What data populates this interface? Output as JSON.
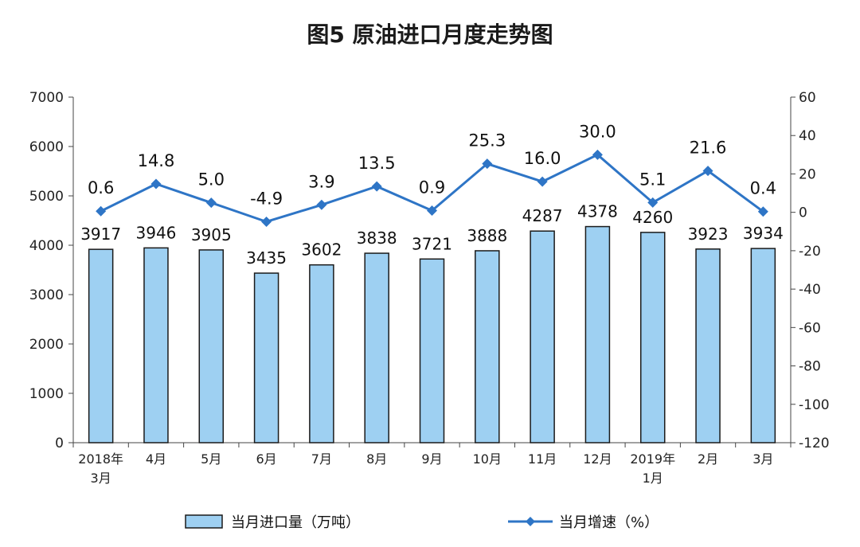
{
  "chart_data": {
    "type": "bar",
    "title": "图5 原油进口月度走势图",
    "categories": [
      [
        "2018年",
        "3月"
      ],
      [
        "4月"
      ],
      [
        "5月"
      ],
      [
        "6月"
      ],
      [
        "7月"
      ],
      [
        "8月"
      ],
      [
        "9月"
      ],
      [
        "10月"
      ],
      [
        "11月"
      ],
      [
        "12月"
      ],
      [
        "2019年",
        "1月"
      ],
      [
        "2月"
      ],
      [
        "3月"
      ]
    ],
    "series": [
      {
        "name": "当月进口量（万吨）",
        "type": "bar",
        "axis": "left",
        "color": "#9ed0f2",
        "values": [
          3917,
          3946,
          3905,
          3435,
          3602,
          3838,
          3721,
          3888,
          4287,
          4378,
          4260,
          3923,
          3934
        ],
        "labels": [
          "3917",
          "3946",
          "3905",
          "3435",
          "3602",
          "3838",
          "3721",
          "3888",
          "4287",
          "4378",
          "4260",
          "3923",
          "3934"
        ]
      },
      {
        "name": "当月增速（%）",
        "type": "line",
        "axis": "right",
        "color": "#2e75c6",
        "values": [
          0.6,
          14.8,
          5.0,
          -4.9,
          3.9,
          13.5,
          0.9,
          25.3,
          16.0,
          30.0,
          5.1,
          21.6,
          0.4
        ],
        "labels": [
          "0.6",
          "14.8",
          "5.0",
          "-4.9",
          "3.9",
          "13.5",
          "0.9",
          "25.3",
          "16.0",
          "30.0",
          "5.1",
          "21.6",
          "0.4"
        ]
      }
    ],
    "y_left": {
      "lim": [
        0,
        7000
      ],
      "ticks": [
        0,
        1000,
        2000,
        3000,
        4000,
        5000,
        6000,
        7000
      ]
    },
    "y_right": {
      "lim": [
        -120,
        60
      ],
      "ticks": [
        60,
        40,
        20,
        0,
        -20,
        -40,
        -60,
        -80,
        -100,
        -120
      ]
    },
    "grid": false,
    "legend_position": "bottom"
  }
}
